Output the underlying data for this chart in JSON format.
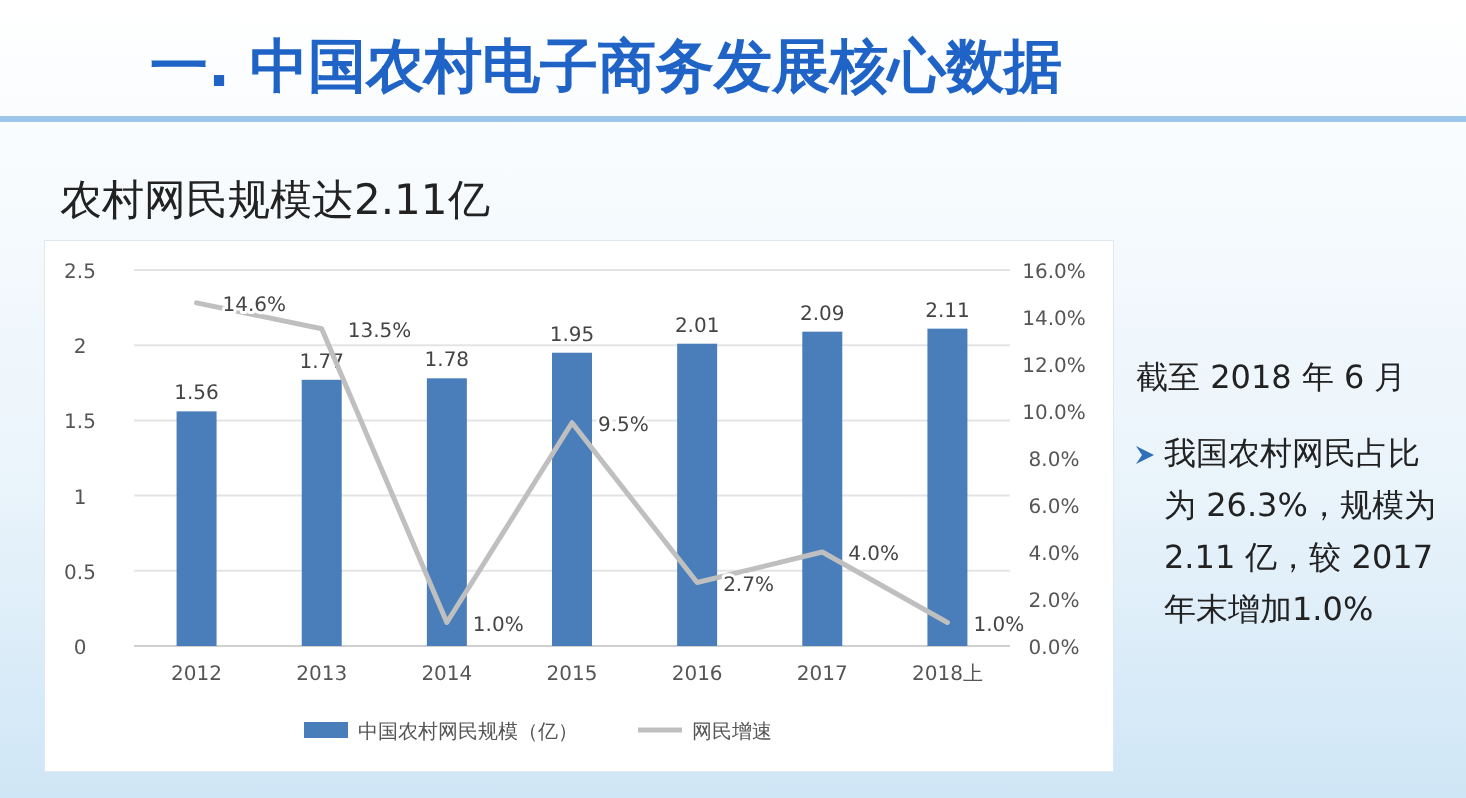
{
  "chart_data": {
    "type": "bar",
    "title": "一. 中国农村电子商务发展核心数据",
    "subtitle": "农村网民规模达2.11亿",
    "categories": [
      "2012",
      "2013",
      "2014",
      "2015",
      "2016",
      "2017",
      "2018上"
    ],
    "series": [
      {
        "name": "中国农村网民规模（亿）",
        "color": "#4a7ebb",
        "values": [
          1.56,
          1.77,
          1.78,
          1.95,
          2.01,
          2.09,
          2.11
        ],
        "value_labels": [
          "1.56",
          "1.77",
          "1.78",
          "1.95",
          "2.01",
          "2.09",
          "2.11"
        ]
      },
      {
        "name": "网民增速",
        "type": "line",
        "axis": "y2",
        "color": "#bfbfbf",
        "values": [
          14.6,
          13.5,
          1.0,
          9.5,
          2.7,
          4.0,
          1.0
        ],
        "value_labels": [
          "14.6%",
          "13.5%",
          "1.0%",
          "9.5%",
          "2.7%",
          "4.0%",
          "1.0%"
        ]
      }
    ],
    "ylim": [
      0,
      2.5
    ],
    "yticks": [
      0,
      0.5,
      1,
      1.5,
      2,
      2.5
    ],
    "y2lim": [
      0,
      16
    ],
    "y2ticks": [
      {
        "value": 0,
        "label": "0.0%"
      },
      {
        "value": 2,
        "label": "2.0%"
      },
      {
        "value": 4,
        "label": "4.0%"
      },
      {
        "value": 6,
        "label": "6.0%"
      },
      {
        "value": 8,
        "label": "8.0%"
      },
      {
        "value": 10,
        "label": "10.0%"
      },
      {
        "value": 12,
        "label": "12.0%"
      },
      {
        "value": 14,
        "label": "14.0%"
      },
      {
        "value": 16,
        "label": "16.0%"
      }
    ],
    "grid": "y",
    "legend": "bottom",
    "annotations": [
      "截至 2018 年 6 月",
      "我国农村网民占比为 26.3%，规模为 2.11 亿，较 2017 年末增加1.0%"
    ]
  }
}
